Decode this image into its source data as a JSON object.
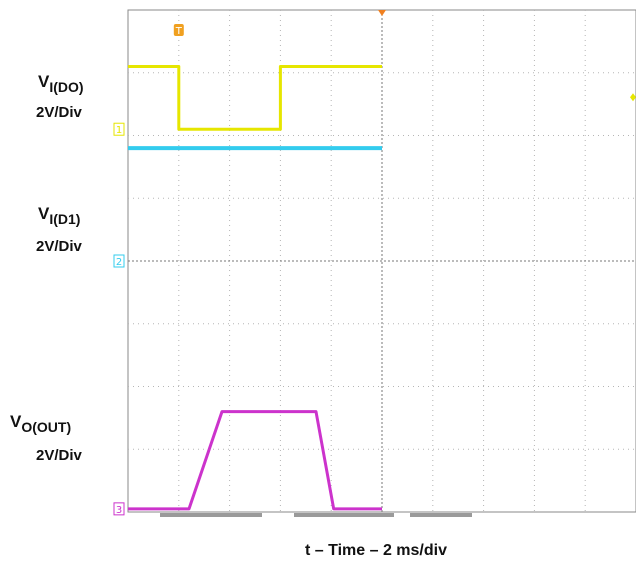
{
  "chart_data": {
    "type": "line",
    "title": "",
    "xlabel": "t – Time – 2 ms/div",
    "time_per_div_ms": 2,
    "h_divisions": 10,
    "v_divisions": 8,
    "grid": true,
    "trigger_marker": "T",
    "series": [
      {
        "label_main": "V",
        "label_sub": "I(DO)",
        "scale": "2V/Div",
        "channel_marker": "1",
        "color": "#e6e600",
        "x_ms": [
          0,
          2.0,
          2.0,
          6.0,
          6.0,
          10.0
        ],
        "y_div": [
          7.1,
          7.1,
          6.1,
          6.1,
          7.1,
          7.1
        ]
      },
      {
        "label_main": "V",
        "label_sub": "I(D1)",
        "scale": "2V/Div",
        "channel_marker": "2",
        "color": "#33ccee",
        "x_ms": [
          0,
          10.0
        ],
        "y_div": [
          5.8,
          5.8
        ]
      },
      {
        "label_main": "V",
        "label_sub": "O(OUT)",
        "scale": "2V/Div",
        "channel_marker": "3",
        "color": "#cc33cc",
        "x_ms": [
          0,
          2.4,
          3.7,
          7.4,
          8.1,
          10.0
        ],
        "y_div": [
          0.05,
          0.05,
          1.6,
          1.6,
          0.05,
          0.05
        ]
      }
    ]
  }
}
